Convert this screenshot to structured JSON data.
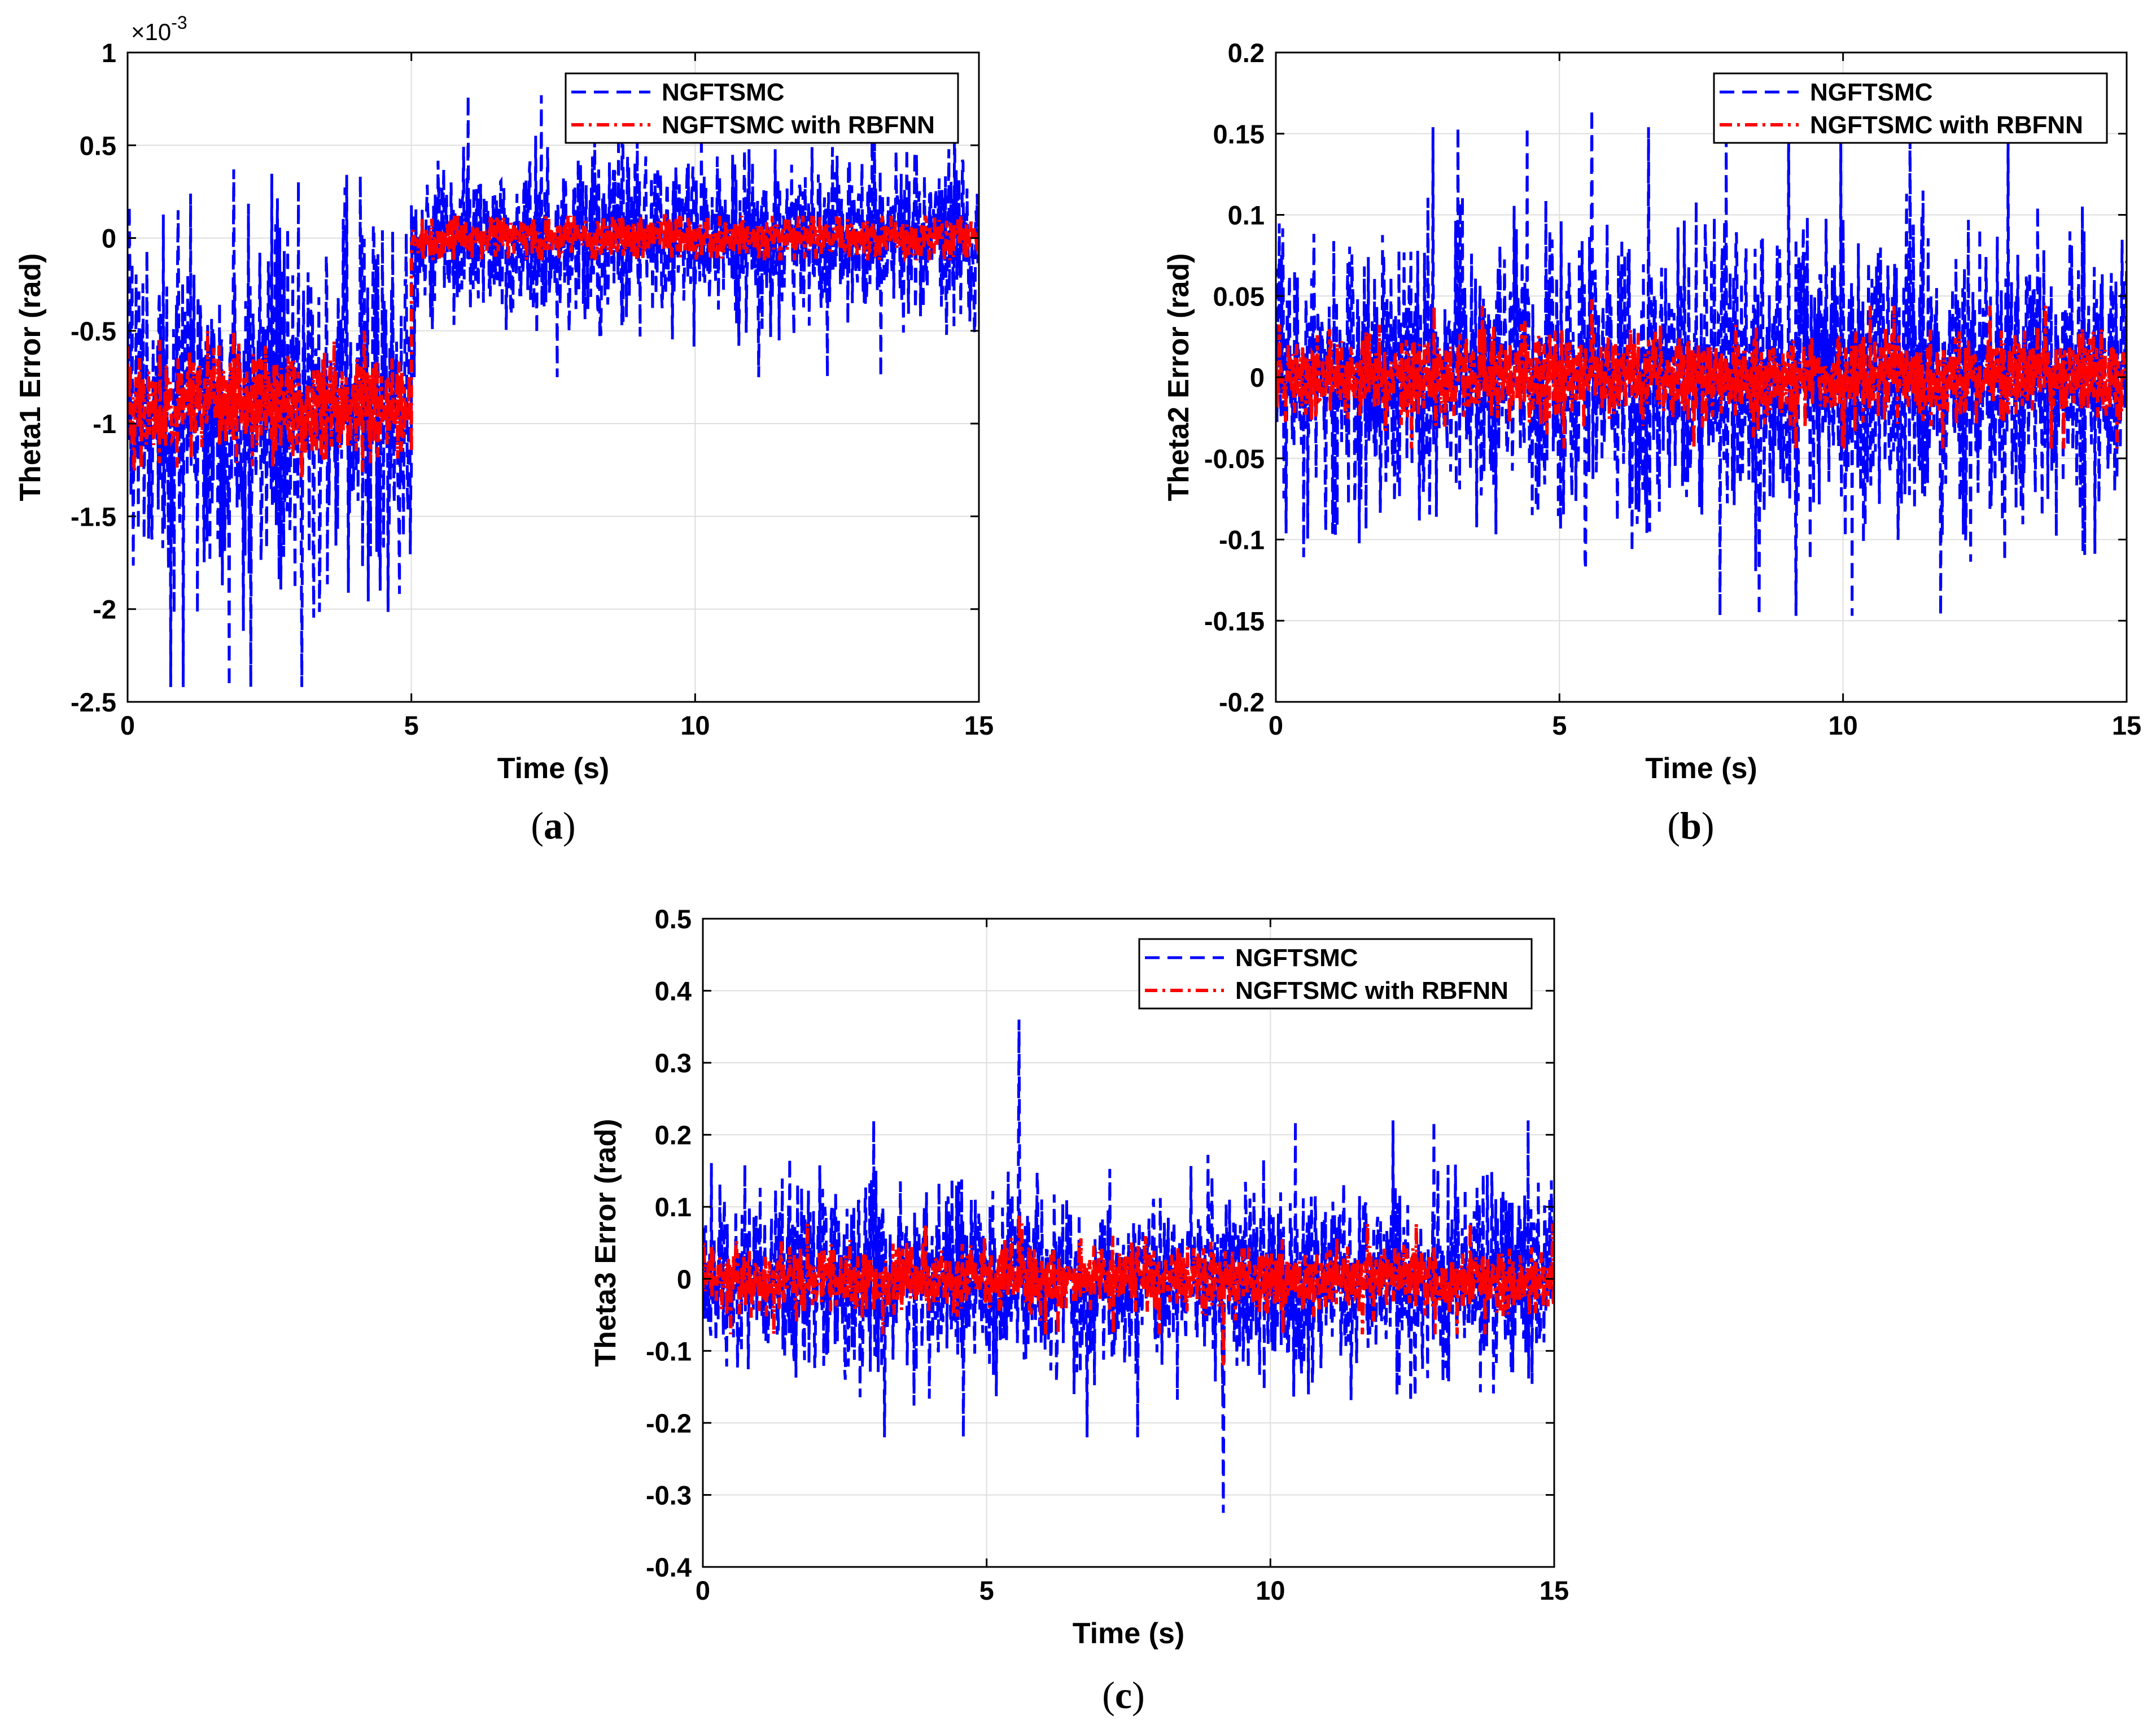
{
  "figure": {
    "panels": [
      {
        "caption_label": "a",
        "exponent_label": "×10",
        "exponent_power": "-3"
      },
      {
        "caption_label": "b"
      },
      {
        "caption_label": "c"
      }
    ]
  },
  "colors": {
    "ngftsmc": "#0000ff",
    "rbfnn": "#ff0000"
  },
  "chart_data": [
    {
      "type": "line",
      "title": "",
      "xlabel": "Time (s)",
      "ylabel": "Theta1 Error (rad)",
      "xlim": [
        0,
        15
      ],
      "ylim": [
        -2.5,
        1
      ],
      "y_scale_note": "×10^-3",
      "xticks": [
        0,
        5,
        10,
        15
      ],
      "xtick_labels": [
        "0",
        "5",
        "10",
        "15"
      ],
      "yticks": [
        -2.5,
        -2,
        -1.5,
        -1,
        -0.5,
        0,
        0.5,
        1
      ],
      "ytick_labels": [
        "-2.5",
        "-2",
        "-1.5",
        "-1",
        "-0.5",
        "0",
        "0.5",
        "1"
      ],
      "legend": {
        "location": "top-right",
        "entries": [
          "NGFTSMC",
          "NGFTSMC with RBFNN"
        ]
      },
      "series": [
        {
          "name": "NGFTSMC",
          "style": "dashed",
          "color": "#0000ff",
          "segments": [
            {
              "t": [
                0,
                5
              ],
              "mean": -0.9,
              "amplitude": 0.75,
              "peak_max": 0.37,
              "peak_min": -2.42
            },
            {
              "t": [
                5,
                15
              ],
              "mean": 0.0,
              "amplitude": 0.35,
              "peak_max": 0.8,
              "peak_min": -0.75
            }
          ]
        },
        {
          "name": "NGFTSMC with RBFNN",
          "style": "dashdot",
          "color": "#ff0000",
          "segments": [
            {
              "t": [
                0,
                5
              ],
              "mean": -0.9,
              "amplitude": 0.22,
              "peak_max": -0.5,
              "peak_min": -1.3
            },
            {
              "t": [
                5,
                15
              ],
              "mean": 0.0,
              "amplitude": 0.09,
              "peak_max": 0.12,
              "peak_min": -0.12
            }
          ]
        }
      ]
    },
    {
      "type": "line",
      "title": "",
      "xlabel": "Time (s)",
      "ylabel": "Theta2 Error (rad)",
      "xlim": [
        0,
        15
      ],
      "ylim": [
        -0.2,
        0.2
      ],
      "xticks": [
        0,
        5,
        10,
        15
      ],
      "xtick_labels": [
        "0",
        "5",
        "10",
        "15"
      ],
      "yticks": [
        -0.2,
        -0.15,
        -0.1,
        -0.05,
        0,
        0.05,
        0.1,
        0.15,
        0.2
      ],
      "ytick_labels": [
        "-0.2",
        "-0.15",
        "-0.1",
        "-0.05",
        "0",
        "0.05",
        "0.1",
        "0.15",
        "0.2"
      ],
      "legend": {
        "location": "top-right",
        "entries": [
          "NGFTSMC",
          "NGFTSMC with RBFNN"
        ]
      },
      "series": [
        {
          "name": "NGFTSMC",
          "style": "dashed",
          "color": "#0000ff",
          "segments": [
            {
              "t": [
                0,
                15
              ],
              "mean": 0.0,
              "amplitude": 0.07,
              "peak_max": 0.165,
              "peak_min": -0.147
            }
          ]
        },
        {
          "name": "NGFTSMC with RBFNN",
          "style": "dashdot",
          "color": "#ff0000",
          "segments": [
            {
              "t": [
                0,
                15
              ],
              "mean": 0.0,
              "amplitude": 0.02,
              "peak_max": 0.048,
              "peak_min": -0.045
            }
          ]
        }
      ]
    },
    {
      "type": "line",
      "title": "",
      "xlabel": "Time (s)",
      "ylabel": "Theta3 Error (rad)",
      "xlim": [
        0,
        15
      ],
      "ylim": [
        -0.4,
        0.5
      ],
      "xticks": [
        0,
        5,
        10,
        15
      ],
      "xtick_labels": [
        "0",
        "5",
        "10",
        "15"
      ],
      "yticks": [
        -0.4,
        -0.3,
        -0.2,
        -0.1,
        0,
        0.1,
        0.2,
        0.3,
        0.4,
        0.5
      ],
      "ytick_labels": [
        "-0.4",
        "-0.3",
        "-0.2",
        "-0.1",
        "0",
        "0.1",
        "0.2",
        "0.3",
        "0.4",
        "0.5"
      ],
      "legend": {
        "location": "top-right",
        "entries": [
          "NGFTSMC",
          "NGFTSMC with RBFNN"
        ]
      },
      "series": [
        {
          "name": "NGFTSMC",
          "style": "dashed",
          "color": "#0000ff",
          "segments": [
            {
              "t": [
                0,
                15
              ],
              "mean": 0.0,
              "amplitude": 0.1,
              "peak_max": 0.36,
              "peak_min": -0.325
            }
          ]
        },
        {
          "name": "NGFTSMC with RBFNN",
          "style": "dashdot",
          "color": "#ff0000",
          "segments": [
            {
              "t": [
                0,
                15
              ],
              "mean": 0.0,
              "amplitude": 0.035,
              "peak_max": 0.09,
              "peak_min": -0.12
            }
          ]
        }
      ]
    }
  ]
}
